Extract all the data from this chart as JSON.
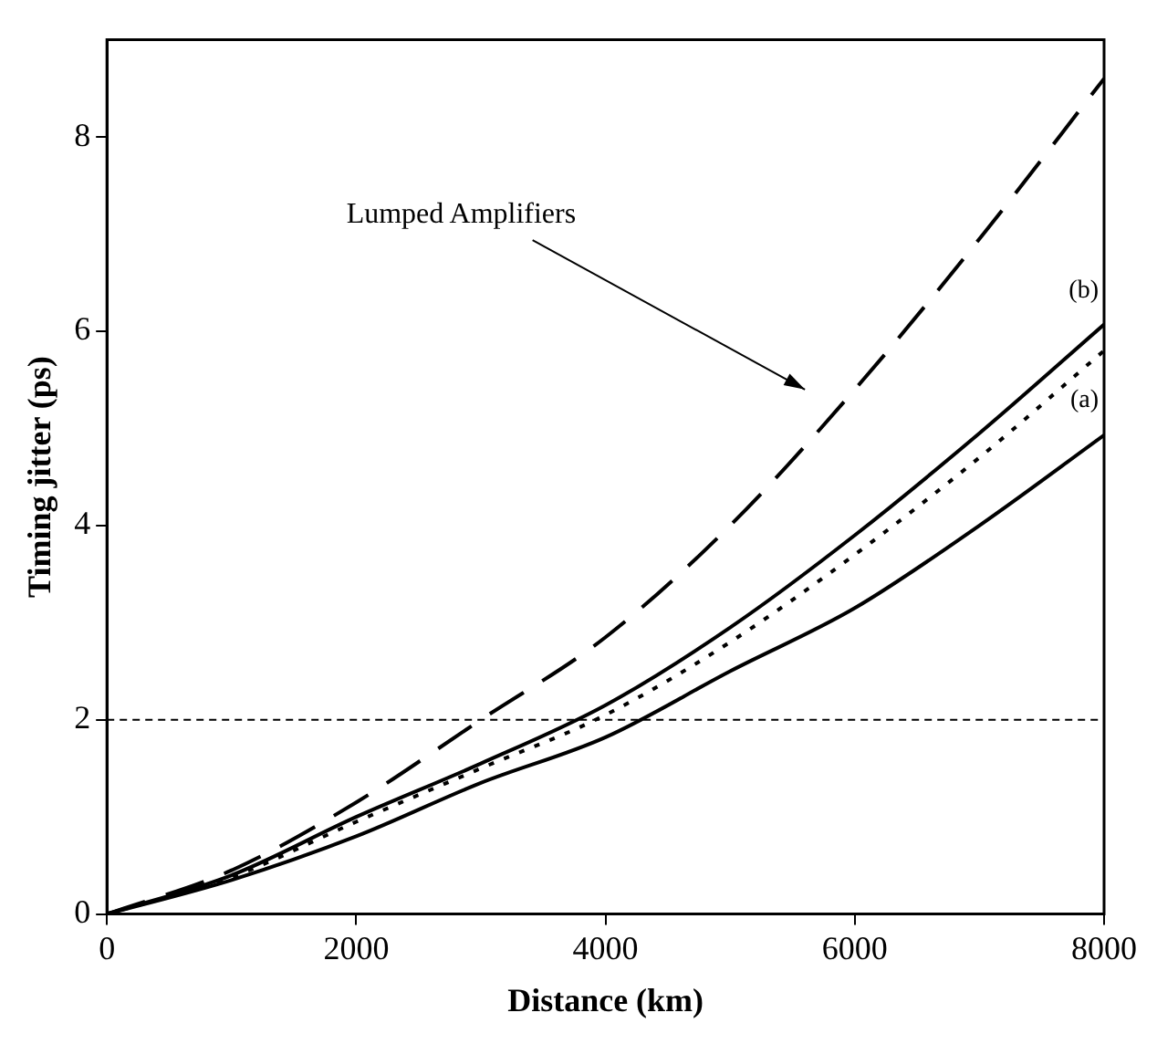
{
  "chart_data": {
    "type": "line",
    "xlabel": "Distance (km)",
    "ylabel": "Timing jitter (ps)",
    "x": [
      0,
      1000,
      2000,
      3000,
      4000,
      5000,
      6000,
      7000,
      8000
    ],
    "series": [
      {
        "color": "#000000",
        "line_style": "dashed",
        "values": [
          0,
          0.45,
          1.15,
          2.0,
          2.85,
          4.0,
          5.4,
          6.95,
          8.6
        ]
      },
      {
        "color": "#000000",
        "line_style": "solid",
        "values": [
          0,
          0.4,
          1.0,
          1.55,
          2.15,
          2.95,
          3.9,
          4.95,
          6.07
        ]
      },
      {
        "color": "#000000",
        "line_style": "dotted",
        "values": [
          0,
          0.38,
          0.95,
          1.5,
          2.05,
          2.8,
          3.7,
          4.7,
          5.8
        ]
      },
      {
        "color": "#000000",
        "line_style": "solid",
        "values": [
          0,
          0.35,
          0.8,
          1.35,
          1.82,
          2.5,
          3.15,
          4.0,
          4.93
        ]
      }
    ],
    "xlim": [
      0,
      8000
    ],
    "xticks": [
      0,
      2000,
      4000,
      6000,
      8000
    ],
    "ylim": [
      0,
      9
    ],
    "yticks": [
      0,
      2,
      4,
      6,
      8
    ],
    "ref_lines": [
      {
        "axis": "y",
        "value": 2,
        "color": "#000000",
        "line_style": "dashed"
      }
    ],
    "annotations": [
      "Lumped Amplifiers",
      {
        "text": "(b)",
        "x": 8000,
        "y": 6.07
      },
      {
        "text": "(a)",
        "x": 8000,
        "y": 4.93
      }
    ],
    "grid": false,
    "legend": false,
    "marker": "none"
  }
}
